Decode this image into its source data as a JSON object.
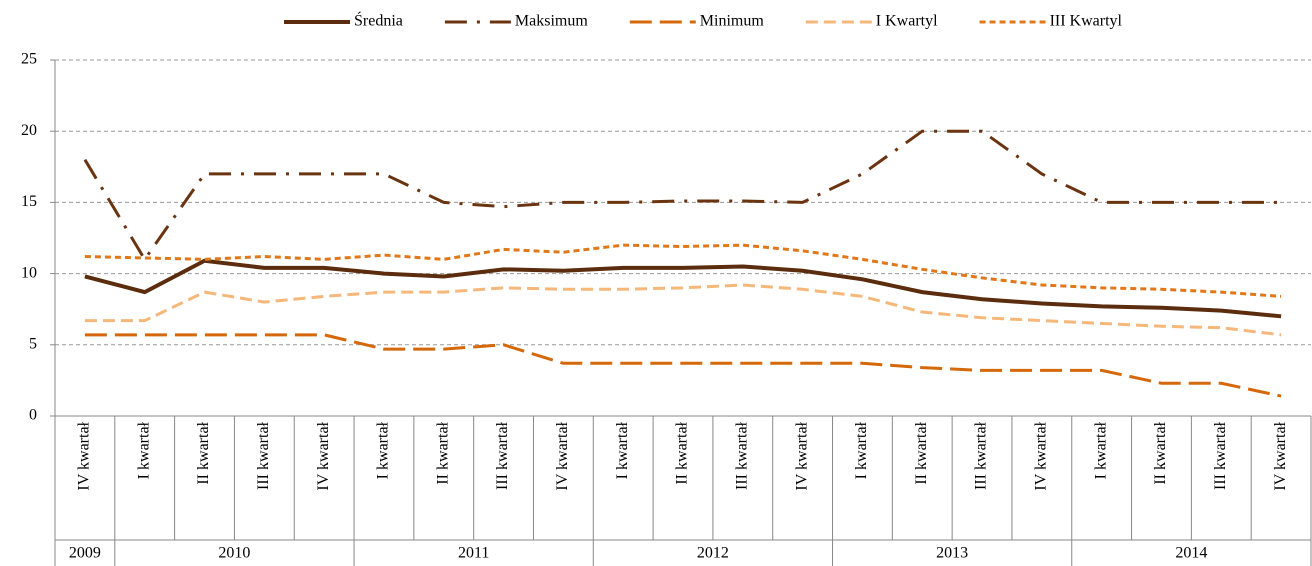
{
  "chart_data": {
    "type": "line",
    "categories": [
      "IV kwartał",
      "I kwartał",
      "II kwartał",
      "III kwartał",
      "IV kwartał",
      "I kwartał",
      "II kwartał",
      "III kwartał",
      "IV kwartał",
      "I kwartał",
      "II kwartał",
      "III kwartał",
      "IV kwartał",
      "I kwartał",
      "II kwartał",
      "III kwartał",
      "IV kwartał",
      "I kwartał",
      "II kwartał",
      "III kwartał",
      "IV kwartał"
    ],
    "years": [
      "2009",
      "2010",
      null,
      null,
      null,
      "2011",
      null,
      null,
      null,
      "2012",
      null,
      null,
      null,
      "2013",
      null,
      null,
      null,
      "2014",
      null,
      null,
      null
    ],
    "series": [
      {
        "name": "Średnia",
        "color": "#5b2c0d",
        "dash": "solid",
        "values": [
          9.8,
          8.7,
          10.9,
          10.4,
          10.4,
          10.0,
          9.8,
          10.3,
          10.2,
          10.4,
          10.4,
          10.5,
          10.2,
          9.6,
          8.7,
          8.2,
          7.9,
          7.7,
          7.6,
          7.4,
          7.0
        ]
      },
      {
        "name": "Maksimum",
        "color": "#6b3410",
        "dash": "dashdot",
        "values": [
          18,
          11,
          17,
          17,
          17,
          17,
          15,
          14.7,
          15,
          15,
          15.1,
          15.1,
          15,
          17,
          20,
          20,
          17,
          15,
          15,
          15,
          15
        ]
      },
      {
        "name": "Minimum",
        "color": "#d4680a",
        "dash": "longdash",
        "values": [
          5.7,
          5.7,
          5.7,
          5.7,
          5.7,
          4.7,
          4.7,
          5.0,
          3.7,
          3.7,
          3.7,
          3.7,
          3.7,
          3.7,
          3.4,
          3.2,
          3.2,
          3.2,
          2.3,
          2.3,
          1.4
        ]
      },
      {
        "name": "I Kwartyl",
        "color": "#f6b77a",
        "dash": "dash",
        "values": [
          6.7,
          6.7,
          8.7,
          8.0,
          8.4,
          8.7,
          8.7,
          9.0,
          8.9,
          8.9,
          9.0,
          9.2,
          8.9,
          8.4,
          7.3,
          6.9,
          6.7,
          6.5,
          6.3,
          6.2,
          5.7
        ]
      },
      {
        "name": "III Kwartyl",
        "color": "#e0781a",
        "dash": "shortdash",
        "values": [
          11.2,
          11.1,
          11.0,
          11.2,
          11.0,
          11.3,
          11.0,
          11.7,
          11.5,
          12.0,
          11.9,
          12.0,
          11.6,
          11.0,
          10.3,
          9.7,
          9.2,
          9.0,
          8.9,
          8.7,
          8.4
        ]
      }
    ],
    "ylim": [
      0,
      25
    ],
    "yticks": [
      0,
      5,
      10,
      15,
      20,
      25
    ],
    "grid": true,
    "legend": "top"
  }
}
